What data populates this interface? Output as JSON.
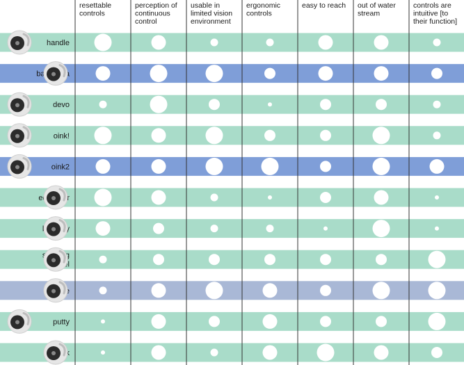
{
  "chart_data": {
    "type": "table",
    "criteria": [
      "resettable controls",
      "perception of continuous control",
      "usable in limited vision environment",
      "ergonomic controls",
      "easy to reach",
      "out of water stream",
      "controls are intuitive [to their function]"
    ],
    "criteria_lines": [
      [
        "resettable",
        "controls"
      ],
      [
        "perception of",
        "continuous",
        "control"
      ],
      [
        "usable in",
        "limited vision",
        "environment"
      ],
      [
        "ergonomic",
        "controls"
      ],
      [
        "easy to reach"
      ],
      [
        "out of water",
        "stream"
      ],
      [
        "controls are",
        "intuitive [to",
        "their function]"
      ]
    ],
    "rows": [
      {
        "label": "handle",
        "label_lines": [
          "handle"
        ],
        "highlight": false,
        "ratings": [
          5,
          4,
          2,
          2,
          4,
          4,
          2
        ]
      },
      {
        "label": "babushka",
        "label_lines": [
          "babushka"
        ],
        "highlight": true,
        "ratings": [
          4,
          5,
          5,
          3,
          4,
          4,
          3
        ]
      },
      {
        "label": "devo",
        "label_lines": [
          "devo"
        ],
        "highlight": false,
        "ratings": [
          2,
          5,
          3,
          1,
          3,
          3,
          2
        ]
      },
      {
        "label": "oink!",
        "label_lines": [
          "oink!"
        ],
        "highlight": false,
        "ratings": [
          5,
          4,
          5,
          3,
          3,
          5,
          2
        ]
      },
      {
        "label": "oink2",
        "label_lines": [
          "oink2"
        ],
        "highlight": true,
        "ratings": [
          4,
          4,
          5,
          5,
          3,
          5,
          4
        ]
      },
      {
        "label": "equalizer",
        "label_lines": [
          "equalizer"
        ],
        "highlight": false,
        "ratings": [
          5,
          4,
          2,
          1,
          3,
          4,
          1
        ]
      },
      {
        "label": "butterfly",
        "label_lines": [
          "butterfly"
        ],
        "highlight": false,
        "ratings": [
          4,
          3,
          2,
          2,
          1,
          5,
          1
        ]
      },
      {
        "label": "steering wheel",
        "label_lines": [
          "steering",
          "wheel"
        ],
        "highlight": false,
        "ratings": [
          2,
          3,
          3,
          3,
          3,
          3,
          5
        ]
      },
      {
        "label": "throttle",
        "label_lines": [
          "throttle"
        ],
        "highlight": false,
        "muted": true,
        "ratings": [
          2,
          4,
          5,
          4,
          3,
          5,
          5
        ]
      },
      {
        "label": "putty",
        "label_lines": [
          "putty"
        ],
        "highlight": false,
        "ratings": [
          1,
          4,
          3,
          4,
          3,
          3,
          5
        ]
      },
      {
        "label": "joystick",
        "label_lines": [
          "joystick"
        ],
        "highlight": false,
        "ratings": [
          1,
          4,
          2,
          4,
          5,
          4,
          3
        ]
      }
    ],
    "rating_scale": "relative circle size (1 = smallest, 5 = largest)",
    "grid": false,
    "legend": "none"
  },
  "colors": {
    "band_green": "#a9dcc9",
    "band_blue": "#7f9ed8",
    "band_muted": "#a9b8d6",
    "dot": "#ffffff",
    "column_rule": "#333333",
    "text": "#1a1a1a",
    "photo_fill": "#e6e6e6",
    "knob": "#2b2b2b"
  },
  "icons": {
    "product_photo": "faucet-control-photo-icon"
  }
}
